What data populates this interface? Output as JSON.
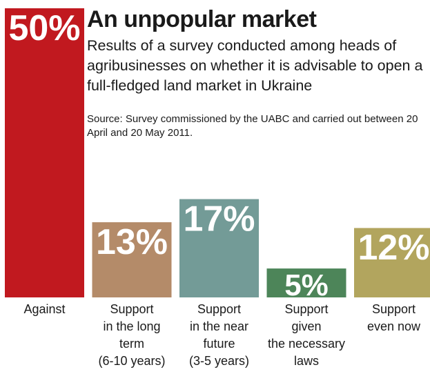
{
  "chart_data": {
    "type": "bar",
    "title": "An unpopular market",
    "subtitle": "Results of a survey conducted among heads of agribusinesses on whether it is advisable to open a full-fledged land market in Ukraine",
    "source": "Source: Survey commissioned by the UABC and carried out between 20 April and 20 May 2011.",
    "categories": [
      "Against",
      "Support in the long term (6-10 years)",
      "Support in the near future (3-5 years)",
      "Support given the necessary laws",
      "Support even now"
    ],
    "category_lines": [
      [
        "Against"
      ],
      [
        "Support",
        "in the long",
        "term",
        "(6-10 years)"
      ],
      [
        "Support",
        "in the near",
        "future",
        "(3-5 years)"
      ],
      [
        "Support",
        "given",
        "the necessary",
        "laws"
      ],
      [
        "Support",
        "even now"
      ]
    ],
    "values": [
      50,
      13,
      17,
      5,
      12
    ],
    "value_labels": [
      "50%",
      "13%",
      "17%",
      "5%",
      "12%"
    ],
    "colors": [
      "#c1191f",
      "#b48b69",
      "#739b97",
      "#4d8559",
      "#b2a55e"
    ],
    "ylim": [
      0,
      50
    ],
    "grid": false,
    "legend": "none"
  }
}
